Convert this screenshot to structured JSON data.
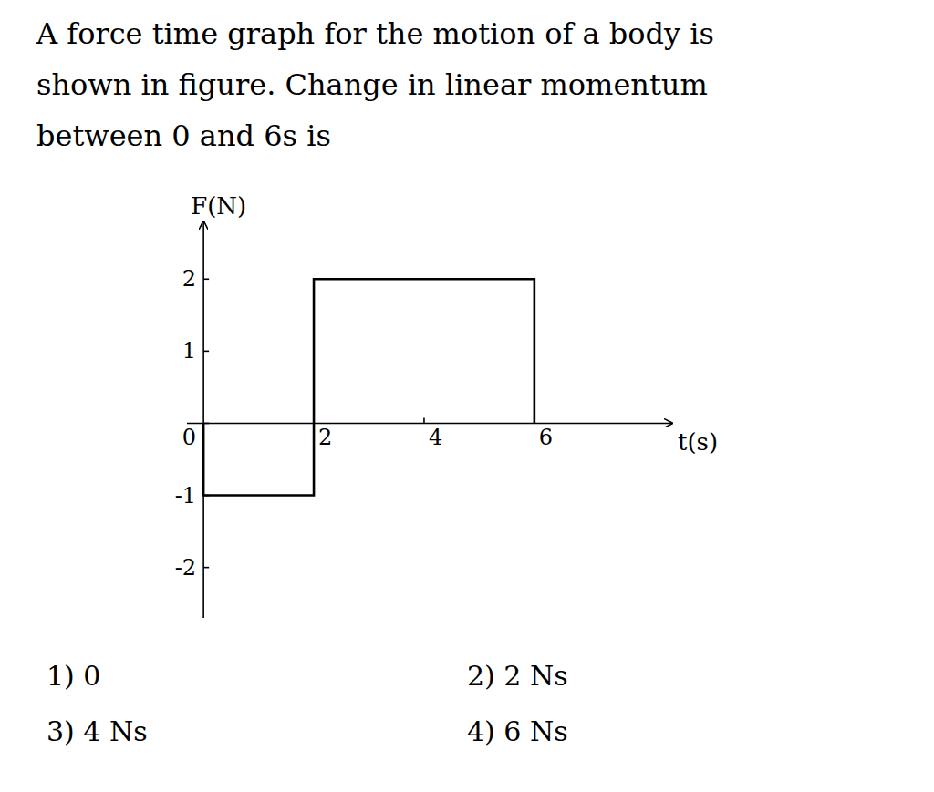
{
  "chart_data": {
    "type": "line",
    "title": [
      "A force time graph for the motion of a body is",
      "shown in figure. Change in linear momentum",
      "between 0 and 6s is"
    ],
    "annotations": [
      "1) 0",
      "2) 2 Ns",
      "3) 4 Ns",
      "4) 6 Ns"
    ],
    "x_label": "t(s)",
    "y_label": "F(N)",
    "x": [
      0,
      0,
      2,
      2,
      6,
      6
    ],
    "values": [
      0,
      -1,
      -1,
      2,
      2,
      0
    ],
    "color": "#000000",
    "xlim": [
      -0.3,
      8.5
    ],
    "ylim": [
      -2.7,
      2.8
    ],
    "xticks": [
      2,
      4,
      6
    ],
    "yticks": [
      -2,
      -1,
      0,
      1,
      2
    ],
    "grid": false
  }
}
